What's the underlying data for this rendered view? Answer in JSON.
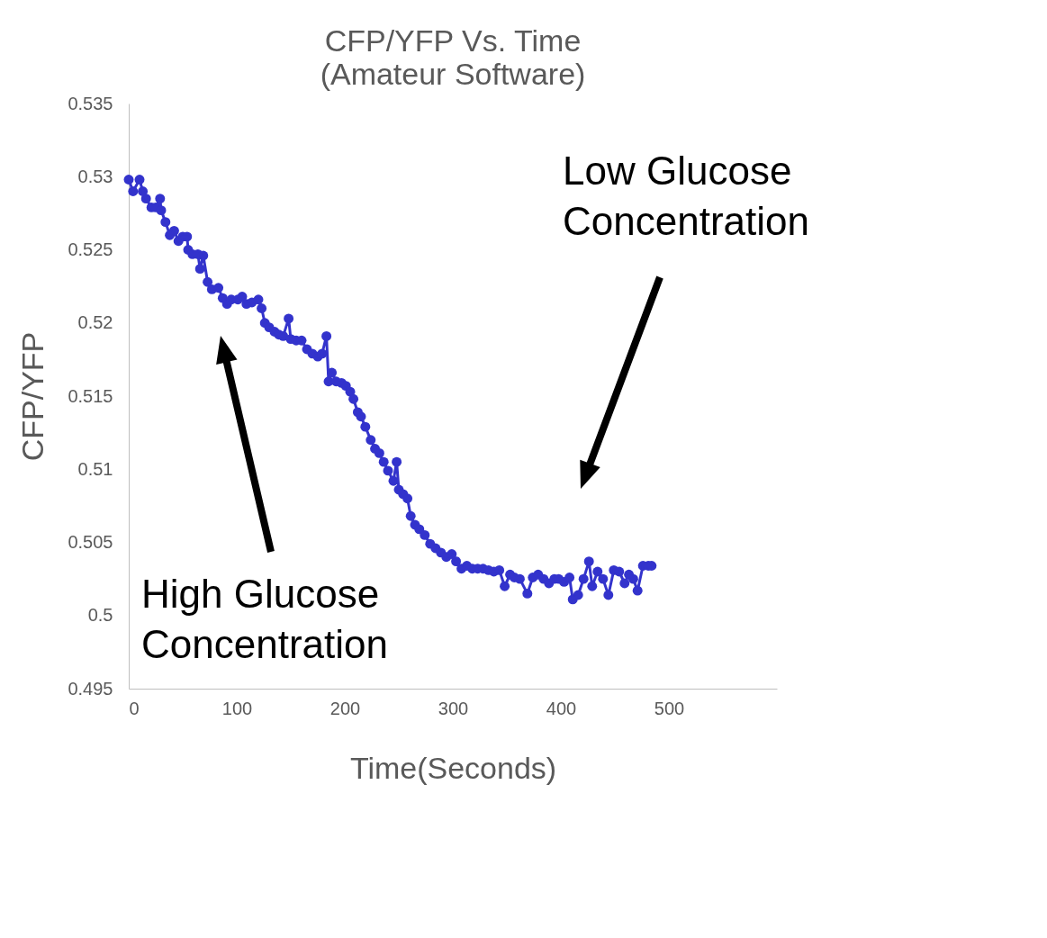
{
  "chart_data": {
    "type": "line",
    "title": "CFP/YFP Vs. Time",
    "subtitle": "(Amateur Software)",
    "xlabel": "Time(Seconds)",
    "ylabel": "CFP/YFP",
    "xlim": [
      0,
      600
    ],
    "xticks": [
      0,
      100,
      200,
      300,
      400,
      500
    ],
    "ylim": [
      0.495,
      0.535
    ],
    "yticks": [
      0.495,
      0.5,
      0.505,
      0.51,
      0.515,
      0.52,
      0.525,
      0.53,
      0.535
    ],
    "grid": false,
    "marker": "circle",
    "line_style": "solid",
    "x": [
      0,
      4,
      10,
      13,
      16,
      21,
      25,
      29,
      30,
      34,
      38,
      42,
      46,
      50,
      54,
      55,
      59,
      64,
      66,
      69,
      73,
      77,
      83,
      87,
      91,
      95,
      101,
      105,
      109,
      114,
      120,
      123,
      126,
      130,
      135,
      139,
      143,
      148,
      150,
      155,
      160,
      165,
      170,
      175,
      179,
      183,
      185,
      188,
      192,
      197,
      201,
      205,
      208,
      212,
      215,
      219,
      224,
      228,
      232,
      236,
      240,
      245,
      248,
      250,
      254,
      258,
      261,
      265,
      269,
      274,
      279,
      284,
      289,
      294,
      299,
      303,
      308,
      313,
      318,
      323,
      328,
      333,
      338,
      343,
      348,
      353,
      357,
      362,
      369,
      374,
      379,
      384,
      389,
      394,
      398,
      403,
      408,
      411,
      416,
      421,
      426,
      429,
      434,
      439,
      444,
      449,
      454,
      459,
      463,
      467,
      471,
      476,
      481,
      484
    ],
    "series": [
      {
        "color": "#3333cc",
        "values": [
          0.5298,
          0.529,
          0.5298,
          0.529,
          0.5285,
          0.5279,
          0.5279,
          0.5285,
          0.5277,
          0.5269,
          0.526,
          0.5263,
          0.5256,
          0.5259,
          0.5259,
          0.525,
          0.5247,
          0.5247,
          0.5237,
          0.5246,
          0.5228,
          0.5223,
          0.5224,
          0.5217,
          0.5213,
          0.5216,
          0.5216,
          0.5218,
          0.5213,
          0.5214,
          0.5216,
          0.521,
          0.52,
          0.5197,
          0.5194,
          0.5192,
          0.5191,
          0.5203,
          0.5189,
          0.5188,
          0.5188,
          0.5182,
          0.5179,
          0.5177,
          0.5179,
          0.5191,
          0.516,
          0.5166,
          0.516,
          0.5159,
          0.5157,
          0.5153,
          0.5148,
          0.5139,
          0.5136,
          0.5129,
          0.512,
          0.5114,
          0.5111,
          0.5105,
          0.5099,
          0.5092,
          0.5105,
          0.5086,
          0.5083,
          0.508,
          0.5068,
          0.5062,
          0.5059,
          0.5055,
          0.5049,
          0.5046,
          0.5043,
          0.504,
          0.5042,
          0.5037,
          0.5032,
          0.5034,
          0.5032,
          0.5032,
          0.5032,
          0.5031,
          0.503,
          0.5031,
          0.502,
          0.5028,
          0.5026,
          0.5025,
          0.5015,
          0.5026,
          0.5028,
          0.5025,
          0.5022,
          0.5025,
          0.5025,
          0.5023,
          0.5026,
          0.5011,
          0.5014,
          0.5025,
          0.5037,
          0.502,
          0.503,
          0.5025,
          0.5014,
          0.5031,
          0.503,
          0.5022,
          0.5028,
          0.5025,
          0.5017,
          0.5034,
          0.5034,
          0.5034
        ]
      }
    ],
    "annotations": [
      "High Glucose Concentration",
      "Low Glucose Concentration"
    ]
  }
}
